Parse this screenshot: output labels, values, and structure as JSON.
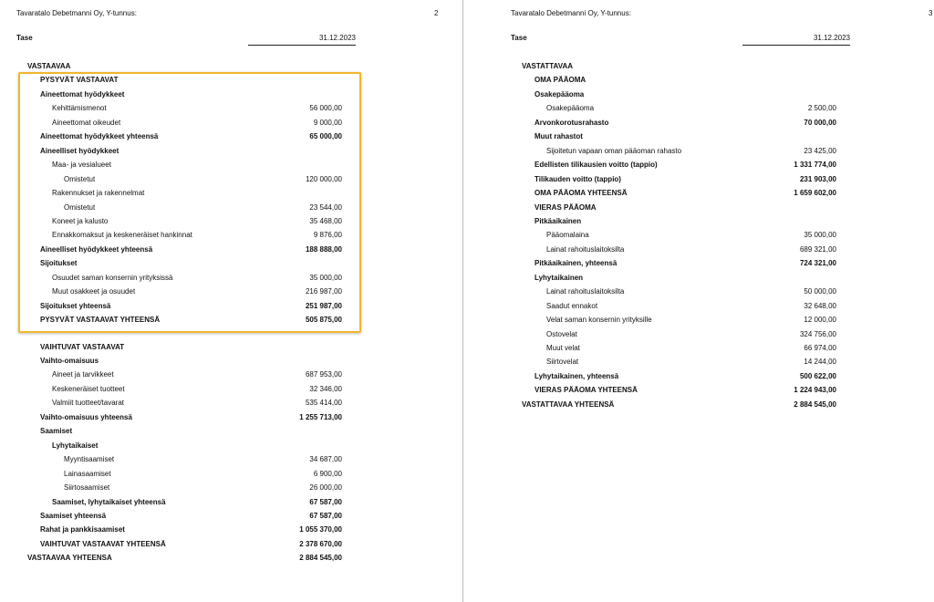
{
  "pages": [
    {
      "company": "Tavaratalo Debetmanni Oy, Y-tunnus:",
      "page_number": "2",
      "heading": "Tase",
      "date": "31.12.2023",
      "sections": [
        [
          {
            "label": "VASTAAVAA",
            "level": 0,
            "bold": true
          },
          {
            "label": "PYSYVÄT VASTAAVAT",
            "level": 1,
            "bold": true
          },
          {
            "label": "Aineettomat hyödykkeet",
            "level": 1,
            "bold": true
          },
          {
            "label": "Kehittämismenot",
            "level": 2,
            "value": "56 000,00"
          },
          {
            "label": "Aineettomat oikeudet",
            "level": 2,
            "value": "9 000,00"
          },
          {
            "label": "Aineettomat hyödykkeet yhteensä",
            "level": 1,
            "bold": true,
            "value": "65 000,00"
          },
          {
            "label": "Aineelliset hyödykkeet",
            "level": 1,
            "bold": true
          },
          {
            "label": "Maa- ja vesialueet",
            "level": 2
          },
          {
            "label": "Omistetut",
            "level": 3,
            "value": "120 000,00"
          },
          {
            "label": "Rakennukset ja rakennelmat",
            "level": 2
          },
          {
            "label": "Omistetut",
            "level": 3,
            "value": "23 544,00"
          },
          {
            "label": "Koneet ja kalusto",
            "level": 2,
            "value": "35 468,00"
          },
          {
            "label": "Ennakkomaksut ja keskeneräiset hankinnat",
            "level": 2,
            "value": "9 876,00"
          },
          {
            "label": "Aineelliset hyödykkeet yhteensä",
            "level": 1,
            "bold": true,
            "value": "188 888,00"
          },
          {
            "label": "Sijoitukset",
            "level": 1,
            "bold": true
          },
          {
            "label": "Osuudet saman konsernin yrityksissä",
            "level": 2,
            "value": "35 000,00"
          },
          {
            "label": "Muut osakkeet ja osuudet",
            "level": 2,
            "value": "216 987,00"
          },
          {
            "label": "Sijoitukset yhteensä",
            "level": 1,
            "bold": true,
            "value": "251 987,00"
          },
          {
            "label": "PYSYVÄT VASTAAVAT YHTEENSÄ",
            "level": 1,
            "bold": true,
            "value": "505 875,00"
          }
        ],
        [
          {
            "label": "VAIHTUVAT VASTAAVAT",
            "level": 1,
            "bold": true
          },
          {
            "label": "Vaihto-omaisuus",
            "level": 1,
            "bold": true
          },
          {
            "label": "Aineet ja tarvikkeet",
            "level": 2,
            "value": "687 953,00"
          },
          {
            "label": "Keskeneräiset tuotteet",
            "level": 2,
            "value": "32 346,00"
          },
          {
            "label": "Valmiit tuotteet/tavarat",
            "level": 2,
            "value": "535 414,00"
          },
          {
            "label": "Vaihto-omaisuus yhteensä",
            "level": 1,
            "bold": true,
            "value": "1 255 713,00"
          },
          {
            "label": "Saamiset",
            "level": 1,
            "bold": true
          },
          {
            "label": "Lyhytaikaiset",
            "level": 2,
            "bold": true
          },
          {
            "label": "Myyntisaamiset",
            "level": 3,
            "value": "34 687,00"
          },
          {
            "label": "Lainasaamiset",
            "level": 3,
            "value": "6 900,00"
          },
          {
            "label": "Siirtosaamiset",
            "level": 3,
            "value": "26 000,00"
          },
          {
            "label": "Saamiset, lyhytaikaiset yhteensä",
            "level": 2,
            "bold": true,
            "value": "67 587,00"
          },
          {
            "label": "Saamiset yhteensä",
            "level": 1,
            "bold": true,
            "value": "67 587,00"
          },
          {
            "label": "Rahat ja pankkisaamiset",
            "level": 1,
            "bold": true,
            "value": "1 055 370,00"
          },
          {
            "label": "VAIHTUVAT VASTAAVAT YHTEENSÄ",
            "level": 1,
            "bold": true,
            "value": "2 378 670,00"
          },
          {
            "label": "VASTAAVAA YHTEENSA",
            "level": 0,
            "bold": true,
            "value": "2 884 545,00"
          }
        ]
      ]
    },
    {
      "company": "Tavaratalo Debetmanni Oy, Y-tunnus:",
      "page_number": "3",
      "heading": "Tase",
      "date": "31.12.2023",
      "sections": [
        [
          {
            "label": "VASTATTAVAA",
            "level": 0,
            "bold": true
          },
          {
            "label": "OMA PÄÄOMA",
            "level": 1,
            "bold": true
          },
          {
            "label": "Osakepääoma",
            "level": 1,
            "bold": true
          },
          {
            "label": "Osakepääoma",
            "level": 2,
            "value": "2 500,00"
          },
          {
            "label": "Arvonkorotusrahasto",
            "level": 1,
            "bold": true,
            "value": "70 000,00"
          },
          {
            "label": "Muut rahastot",
            "level": 1,
            "bold": true
          },
          {
            "label": "Sijoitetun vapaan oman pääoman rahasto",
            "level": 2,
            "value": "23 425,00"
          },
          {
            "label": "Edellisten tilikausien voitto (tappio)",
            "level": 1,
            "bold": true,
            "value": "1 331 774,00"
          },
          {
            "label": "Tilikauden voitto (tappio)",
            "level": 1,
            "bold": true,
            "value": "231 903,00"
          },
          {
            "label": "OMA PÄÄOMA YHTEENSÄ",
            "level": 1,
            "bold": true,
            "value": "1 659 602,00"
          },
          {
            "label": "VIERAS PÄÄOMA",
            "level": 1,
            "bold": true
          },
          {
            "label": "Pitkäaikainen",
            "level": 1,
            "bold": true
          },
          {
            "label": "Pääomalaina",
            "level": 2,
            "value": "35 000,00"
          },
          {
            "label": "Lainat rahoituslaitoksilta",
            "level": 2,
            "value": "689 321,00"
          },
          {
            "label": "Pitkäaikainen, yhteensä",
            "level": 1,
            "bold": true,
            "value": "724 321,00"
          },
          {
            "label": "Lyhytaikainen",
            "level": 1,
            "bold": true
          },
          {
            "label": "Lainat rahoituslaitoksilta",
            "level": 2,
            "value": "50 000,00"
          },
          {
            "label": "Saadut ennakot",
            "level": 2,
            "value": "32 648,00"
          },
          {
            "label": "Velat saman konsernin yrityksille",
            "level": 2,
            "value": "12 000,00"
          },
          {
            "label": "Ostovelat",
            "level": 2,
            "value": "324 756,00"
          },
          {
            "label": "Muut velat",
            "level": 2,
            "value": "66 974,00"
          },
          {
            "label": "Siirtovelat",
            "level": 2,
            "value": "14 244,00"
          },
          {
            "label": "Lyhytaikainen, yhteensä",
            "level": 1,
            "bold": true,
            "value": "500 622,00"
          },
          {
            "label": "VIERAS PÄÄOMA YHTEENSÄ",
            "level": 1,
            "bold": true,
            "value": "1 224 943,00"
          },
          {
            "label": "VASTATTAVAA YHTEENSÄ",
            "level": 0,
            "bold": true,
            "value": "2 884 545,00"
          }
        ]
      ]
    }
  ]
}
